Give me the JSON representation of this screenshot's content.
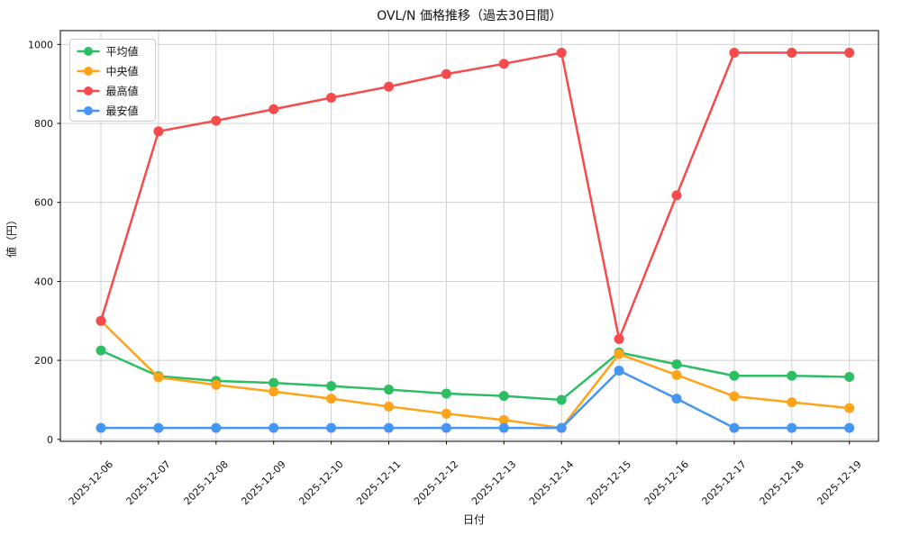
{
  "chart_data": {
    "type": "line",
    "title": "OVL/N 価格推移（過去30日間）",
    "xlabel": "日付",
    "ylabel": "値（円）",
    "x": [
      "2025-12-06",
      "2025-12-07",
      "2025-12-08",
      "2025-12-09",
      "2025-12-10",
      "2025-12-11",
      "2025-12-12",
      "2025-12-13",
      "2025-12-14",
      "2025-12-15",
      "2025-12-16",
      "2025-12-17",
      "2025-12-18",
      "2025-12-19"
    ],
    "series": [
      {
        "name": "平均値",
        "color": "#2dbd63",
        "values": [
          225,
          160,
          148,
          143,
          135,
          126,
          116,
          110,
          100,
          220,
          190,
          161,
          161,
          158
        ]
      },
      {
        "name": "中央値",
        "color": "#ffa318",
        "values": [
          300,
          157,
          138,
          121,
          103,
          83,
          65,
          49,
          29,
          216,
          163,
          109,
          94,
          79
        ]
      },
      {
        "name": "最高値",
        "color": "#f64b4c",
        "values": [
          300,
          780,
          807,
          836,
          865,
          893,
          925,
          951,
          979,
          254,
          618,
          979,
          979,
          979
        ]
      },
      {
        "name": "最安値",
        "color": "#4694f3",
        "values": [
          29,
          29,
          29,
          29,
          29,
          29,
          29,
          29,
          29,
          174,
          103,
          29,
          29,
          29
        ]
      }
    ],
    "yticks": [
      0,
      200,
      400,
      600,
      800,
      1000
    ],
    "ylim": [
      -5,
      1035
    ],
    "grid": true,
    "legend_position": "upper-left",
    "marker": "circle",
    "line_width": 2.5,
    "marker_radius": 5.5,
    "grid_color": "#cccccc",
    "spine_color": "#000000",
    "background_color": "#ffffff"
  }
}
